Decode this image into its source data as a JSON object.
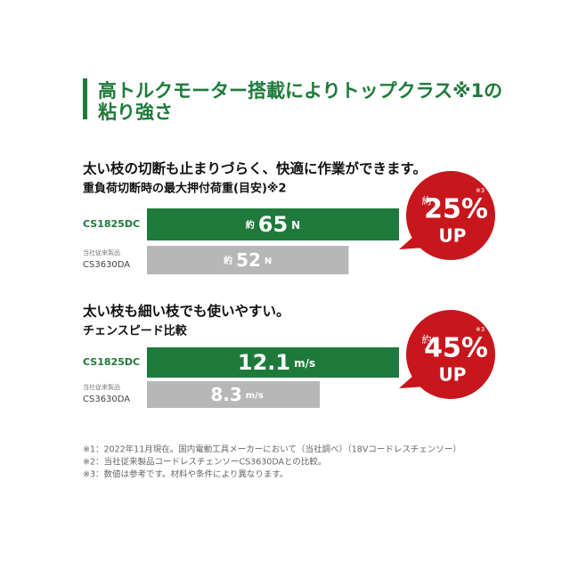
{
  "header": {
    "title_lines": [
      "高トルクモーター搭載によりトップクラス※1の",
      "粘り強さ"
    ]
  },
  "chart_data": [
    {
      "type": "bar",
      "subtitle": "太い枝の切断も止まりづらく、快適に作業ができます。",
      "title": "重負荷切断時の最大押付荷重(目安)※2",
      "categories": [
        "CS1825DC",
        "CS3630DA"
      ],
      "category_notes": [
        null,
        "当社従来製品"
      ],
      "values": [
        65,
        52
      ],
      "colors": [
        "#1e7a3a",
        "#b7b7b7"
      ],
      "value_prefix": [
        "約",
        "約"
      ],
      "unit": "N",
      "badge": {
        "prefix": "約",
        "value_label": "25%",
        "note": "※3",
        "text": "UP"
      }
    },
    {
      "type": "bar",
      "subtitle": "太い枝も細い枝でも使いやすい。",
      "title": "チェンスピード比較",
      "categories": [
        "CS1825DC",
        "CS3630DA"
      ],
      "category_notes": [
        null,
        "当社従来製品"
      ],
      "values": [
        12.1,
        8.3
      ],
      "colors": [
        "#1e7a3a",
        "#b7b7b7"
      ],
      "value_prefix": [
        null,
        null
      ],
      "unit": "m/s",
      "badge": {
        "prefix": "約",
        "value_label": "45%",
        "note": "※3",
        "text": "UP"
      }
    }
  ],
  "footnotes": [
    "※1：2022年11月現在。国内電動工具メーカーにおいて（当社調べ）（18Vコードレスチェンソー）",
    "※2：当社従来製品コードレスチェンソーCS3630DAとの比較。",
    "※3：数値は参考です。材料や条件により異なります。"
  ]
}
